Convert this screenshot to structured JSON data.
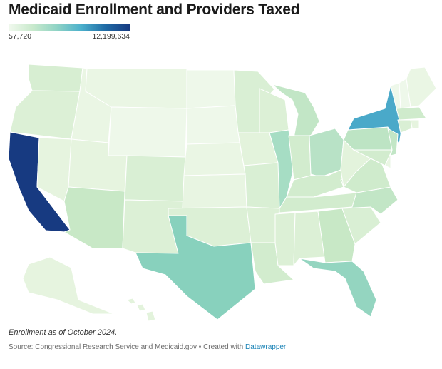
{
  "title": "Medicaid Enrollment and Providers Taxed",
  "legend": {
    "min_label": "57,720",
    "max_label": "12,199,634",
    "colors": [
      "#f1f9ee",
      "#c8e9cc",
      "#8fd3c5",
      "#4bb0cc",
      "#1f6aa5",
      "#173a81"
    ]
  },
  "note": "Enrollment as of October 2024.",
  "source": {
    "text": "Source: Congressional Research Service and Medicaid.gov • Created with ",
    "link_text": "Datawrapper"
  },
  "states": [
    {
      "id": "WA",
      "color": "#d7eed2"
    },
    {
      "id": "OR",
      "color": "#dcf0d6"
    },
    {
      "id": "CA",
      "color": "#173a81"
    },
    {
      "id": "NV",
      "color": "#e6f4df"
    },
    {
      "id": "ID",
      "color": "#eaf6e4"
    },
    {
      "id": "MT",
      "color": "#eaf6e4"
    },
    {
      "id": "WY",
      "color": "#eef8ea"
    },
    {
      "id": "UT",
      "color": "#e6f4df"
    },
    {
      "id": "AZ",
      "color": "#c8e8c6"
    },
    {
      "id": "CO",
      "color": "#d9efd4"
    },
    {
      "id": "NM",
      "color": "#dcf0d6"
    },
    {
      "id": "ND",
      "color": "#eef8ea"
    },
    {
      "id": "SD",
      "color": "#eef8ea"
    },
    {
      "id": "NE",
      "color": "#eaf6e4"
    },
    {
      "id": "KS",
      "color": "#e8f5e2"
    },
    {
      "id": "OK",
      "color": "#dcf0d6"
    },
    {
      "id": "TX",
      "color": "#88d1bd"
    },
    {
      "id": "MN",
      "color": "#d9efd4"
    },
    {
      "id": "IA",
      "color": "#e3f3dc"
    },
    {
      "id": "MO",
      "color": "#d9efd4"
    },
    {
      "id": "AR",
      "color": "#dcf0d6"
    },
    {
      "id": "LA",
      "color": "#d2ecce"
    },
    {
      "id": "WI",
      "color": "#dcf0d6"
    },
    {
      "id": "IL",
      "color": "#a6ddc4"
    },
    {
      "id": "MI",
      "color": "#c2e6c6"
    },
    {
      "id": "IN",
      "color": "#d2ecce"
    },
    {
      "id": "OH",
      "color": "#b8e2c6"
    },
    {
      "id": "KY",
      "color": "#d2ecce"
    },
    {
      "id": "TN",
      "color": "#d2ecce"
    },
    {
      "id": "MS",
      "color": "#dcf0d6"
    },
    {
      "id": "AL",
      "color": "#dcf0d6"
    },
    {
      "id": "GA",
      "color": "#c8e8c6"
    },
    {
      "id": "FL",
      "color": "#94d5c0"
    },
    {
      "id": "SC",
      "color": "#d9efd4"
    },
    {
      "id": "NC",
      "color": "#c2e6c6"
    },
    {
      "id": "VA",
      "color": "#cfebcc"
    },
    {
      "id": "WV",
      "color": "#e3f3dc"
    },
    {
      "id": "PA",
      "color": "#bde4c4"
    },
    {
      "id": "NY",
      "color": "#4aa9c9"
    },
    {
      "id": "VT",
      "color": "#eef8ea"
    },
    {
      "id": "NH",
      "color": "#eef8ea"
    },
    {
      "id": "ME",
      "color": "#eaf6e4"
    },
    {
      "id": "MA",
      "color": "#cfebcc"
    },
    {
      "id": "RI",
      "color": "#e6f4df"
    },
    {
      "id": "CT",
      "color": "#d9efd4"
    },
    {
      "id": "NJ",
      "color": "#c2e6c6"
    },
    {
      "id": "DE",
      "color": "#eaf6e4"
    },
    {
      "id": "MD",
      "color": "#d2ecce"
    },
    {
      "id": "AK",
      "color": "#e6f4df"
    },
    {
      "id": "HI",
      "color": "#e3f3dc"
    }
  ]
}
